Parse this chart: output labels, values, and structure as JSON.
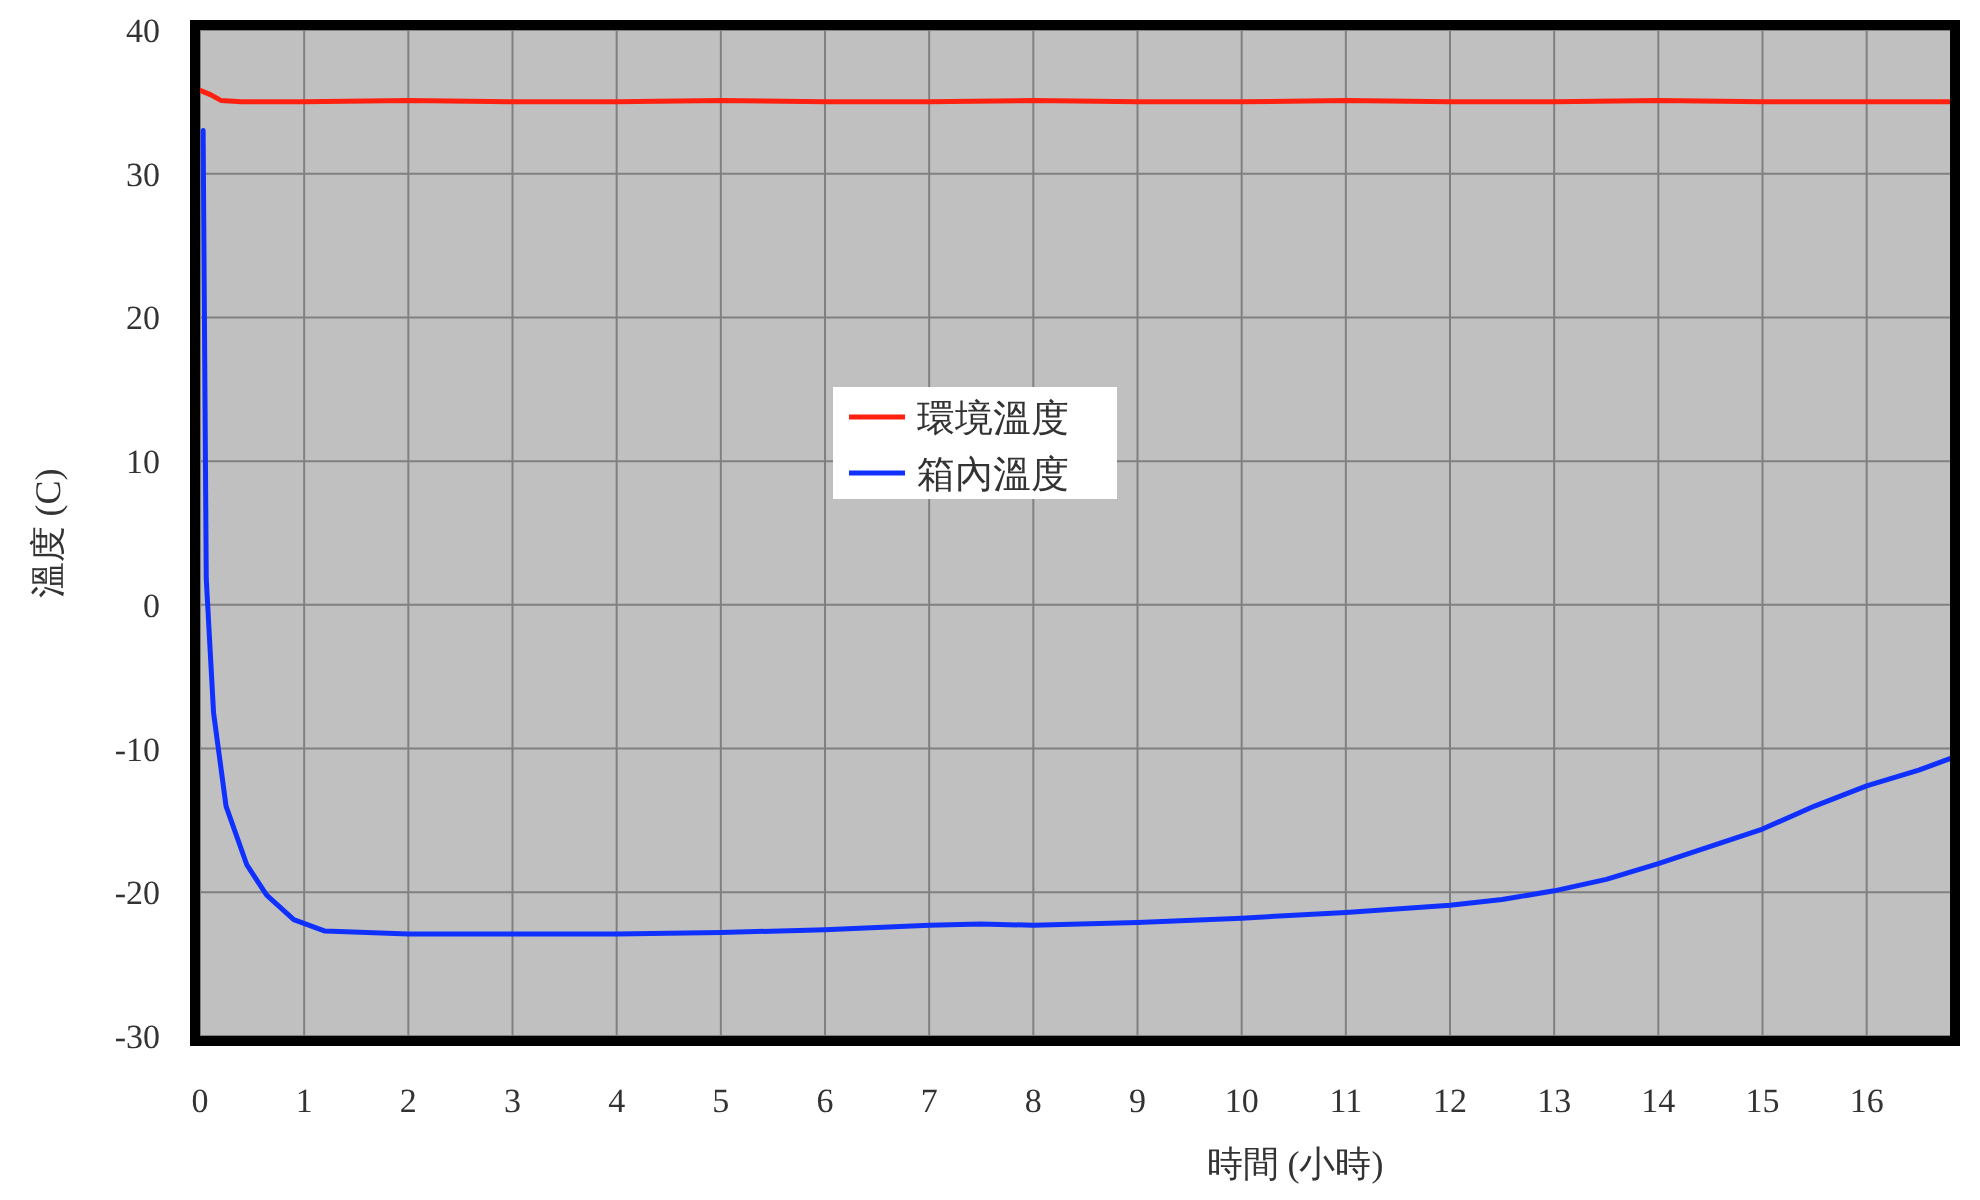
{
  "chart_data": {
    "type": "line",
    "xlabel": "時間 (小時)",
    "ylabel": "溫度 (C)",
    "xlim": [
      0,
      16.8
    ],
    "ylim": [
      -30,
      40
    ],
    "xticks": [
      0,
      1,
      2,
      3,
      4,
      5,
      6,
      7,
      8,
      9,
      10,
      11,
      12,
      13,
      14,
      15,
      16
    ],
    "yticks": [
      -30,
      -20,
      -10,
      0,
      10,
      20,
      30,
      40
    ],
    "grid": true,
    "legend": "center",
    "marker": "none",
    "line_style": "solid",
    "series": [
      {
        "name": "環境溫度",
        "color": "#ff2010",
        "x": [
          0,
          0.1,
          0.2,
          0.4,
          1,
          2,
          3,
          4,
          5,
          6,
          7,
          8,
          9,
          10,
          11,
          12,
          13,
          14,
          15,
          16,
          16.8
        ],
        "values": [
          35.8,
          35.5,
          35.1,
          35.0,
          35.0,
          35.1,
          35.0,
          35.0,
          35.1,
          35.0,
          35.0,
          35.1,
          35.0,
          35.0,
          35.1,
          35.0,
          35.0,
          35.1,
          35.0,
          35.0,
          35.0
        ]
      },
      {
        "name": "箱內溫度",
        "color": "#1030ff",
        "x": [
          0.03,
          0.06,
          0.13,
          0.25,
          0.45,
          0.64,
          0.9,
          1.2,
          2,
          3,
          4,
          5,
          6,
          7,
          7.5,
          8,
          9,
          10,
          11,
          12,
          12.5,
          13,
          13.5,
          14,
          14.5,
          15,
          15.5,
          16,
          16.5,
          16.8
        ],
        "values": [
          33,
          1.8,
          -7.5,
          -14,
          -18.1,
          -20.2,
          -21.9,
          -22.7,
          -22.9,
          -22.9,
          -22.9,
          -22.8,
          -22.6,
          -22.3,
          -22.2,
          -22.3,
          -22.1,
          -21.8,
          -21.4,
          -20.9,
          -20.5,
          -19.9,
          -19.1,
          -18,
          -16.8,
          -15.6,
          -14,
          -12.6,
          -11.5,
          -10.7
        ]
      }
    ]
  }
}
